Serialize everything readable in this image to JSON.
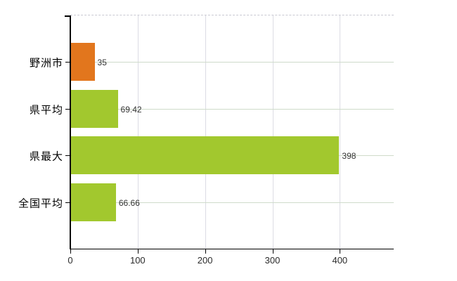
{
  "chart": {
    "background": "#ffffff",
    "axis_color": "#000000",
    "grid_vertical_color": "#dcdce4",
    "grid_horizontal_color": "#cfdbca",
    "top_border_color": "#c9c9d2",
    "tick_label_color": "#2b2b2b",
    "value_label_color": "#333333",
    "bar_color_highlight": "#e2761d",
    "bar_color_default": "#a2c82e"
  },
  "chart_data": {
    "type": "bar",
    "orientation": "horizontal",
    "title": "",
    "xlabel": "",
    "ylabel": "",
    "categories": [
      "野洲市",
      "県平均",
      "県最大",
      "全国平均"
    ],
    "values": [
      35,
      69.42,
      398,
      66.66
    ],
    "value_labels": [
      "35",
      "69.42",
      "398",
      "66.66"
    ],
    "bar_colors": [
      "#e2761d",
      "#a2c82e",
      "#a2c82e",
      "#a2c82e"
    ],
    "x_ticks": [
      0,
      100,
      200,
      300,
      400
    ],
    "x_tick_labels": [
      "0",
      "100",
      "200",
      "300",
      "400"
    ],
    "xlim": [
      0,
      480
    ],
    "grid": true,
    "legend": "none"
  }
}
